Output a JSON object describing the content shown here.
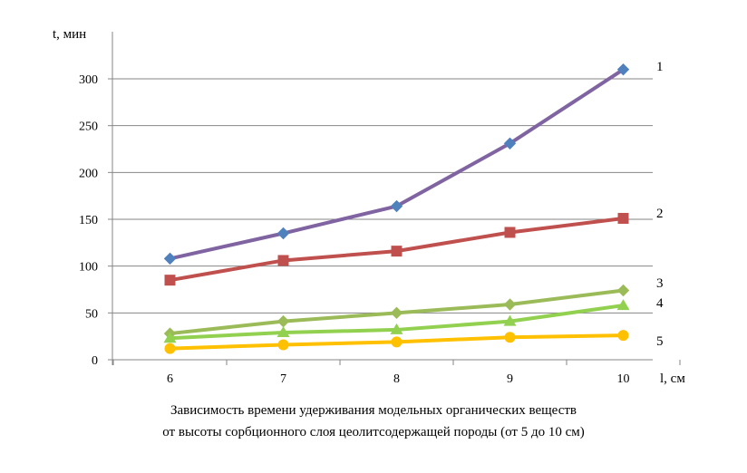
{
  "chart_data": {
    "type": "line",
    "x": [
      6,
      7,
      8,
      9,
      10
    ],
    "xlabel": "l, см",
    "ylabel": "t, мин",
    "ylim": [
      0,
      300
    ],
    "yticks": [
      0,
      50,
      100,
      150,
      200,
      250,
      300
    ],
    "grid": "horizontal",
    "series": [
      {
        "name": "1",
        "color": "#8064a2",
        "marker_color": "#4f81bd",
        "marker": "diamond",
        "values": [
          108,
          135,
          164,
          231,
          310
        ]
      },
      {
        "name": "2",
        "color": "#c0504d",
        "marker_color": "#c0504d",
        "marker": "square",
        "values": [
          85,
          106,
          116,
          136,
          151
        ]
      },
      {
        "name": "3",
        "color": "#9bbb59",
        "marker_color": "#9bbb59",
        "marker": "diamond",
        "values": [
          28,
          41,
          50,
          59,
          74
        ]
      },
      {
        "name": "4",
        "color": "#92d050",
        "marker_color": "#92d050",
        "marker": "triangle",
        "values": [
          23,
          29,
          32,
          41,
          58
        ]
      },
      {
        "name": "5",
        "color": "#ffc000",
        "marker_color": "#ffc000",
        "marker": "circle",
        "values": [
          12,
          16,
          19,
          24,
          26
        ]
      }
    ],
    "caption_lines": [
      "Зависимость времени удерживания модельных органических веществ",
      "от высоты сорбционного слоя цеолитсодержащей породы (от 5 до 10 см)"
    ]
  }
}
